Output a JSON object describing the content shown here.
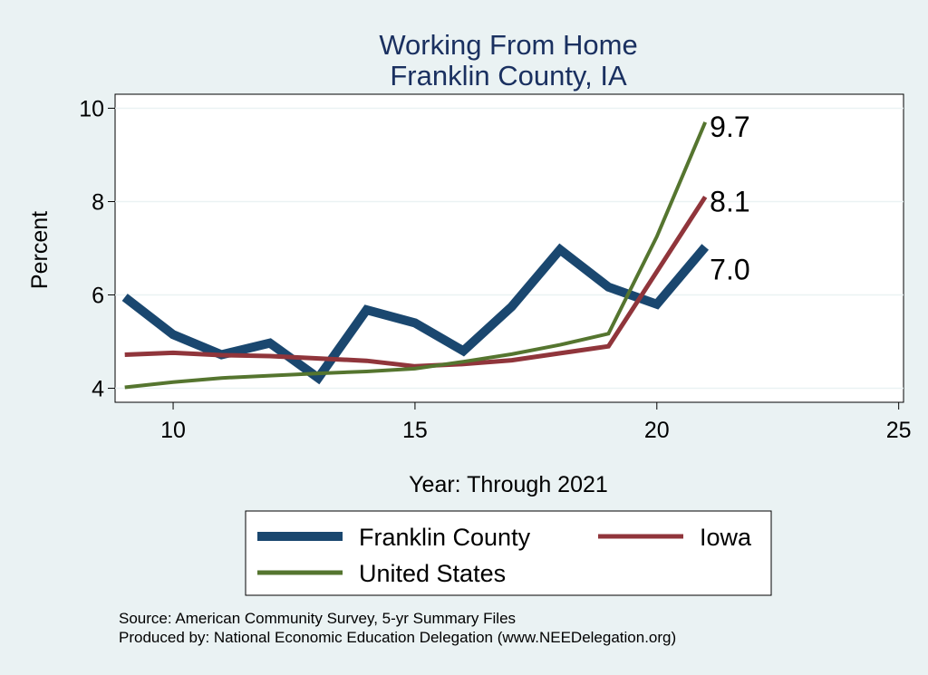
{
  "chart_data": {
    "type": "line",
    "title": [
      "Working From Home",
      "Franklin County, IA"
    ],
    "xlabel": "Year: Through 2021",
    "ylabel": "Percent",
    "xlim": [
      8.8,
      25.1
    ],
    "ylim": [
      3.7,
      10.3
    ],
    "xticks": [
      10,
      15,
      20,
      25
    ],
    "yticks": [
      4,
      6,
      8,
      10
    ],
    "grid": true,
    "legend_position": "bottom",
    "x": [
      9,
      10,
      11,
      12,
      13,
      14,
      15,
      16,
      17,
      18,
      19,
      20,
      21
    ],
    "series": [
      {
        "name": "Franklin County",
        "color": "#1a476f",
        "values": [
          5.95,
          5.15,
          4.72,
          4.97,
          4.22,
          5.68,
          5.4,
          4.8,
          5.75,
          6.97,
          6.17,
          5.8,
          7.03
        ],
        "end_label": "7.0"
      },
      {
        "name": "Iowa",
        "color": "#90353b",
        "values": [
          4.72,
          4.76,
          4.71,
          4.69,
          4.64,
          4.59,
          4.47,
          4.52,
          4.6,
          4.75,
          4.9,
          6.5,
          8.1
        ],
        "end_label": "8.1"
      },
      {
        "name": "United States",
        "color": "#55752f",
        "values": [
          4.02,
          4.13,
          4.22,
          4.27,
          4.32,
          4.36,
          4.42,
          4.57,
          4.73,
          4.93,
          5.17,
          7.25,
          9.7
        ],
        "end_label": "9.7"
      }
    ],
    "source_notes": [
      "Source: American Community Survey, 5-yr Summary Files",
      "Produced by: National Economic Education Delegation (www.NEEDelegation.org)"
    ]
  }
}
